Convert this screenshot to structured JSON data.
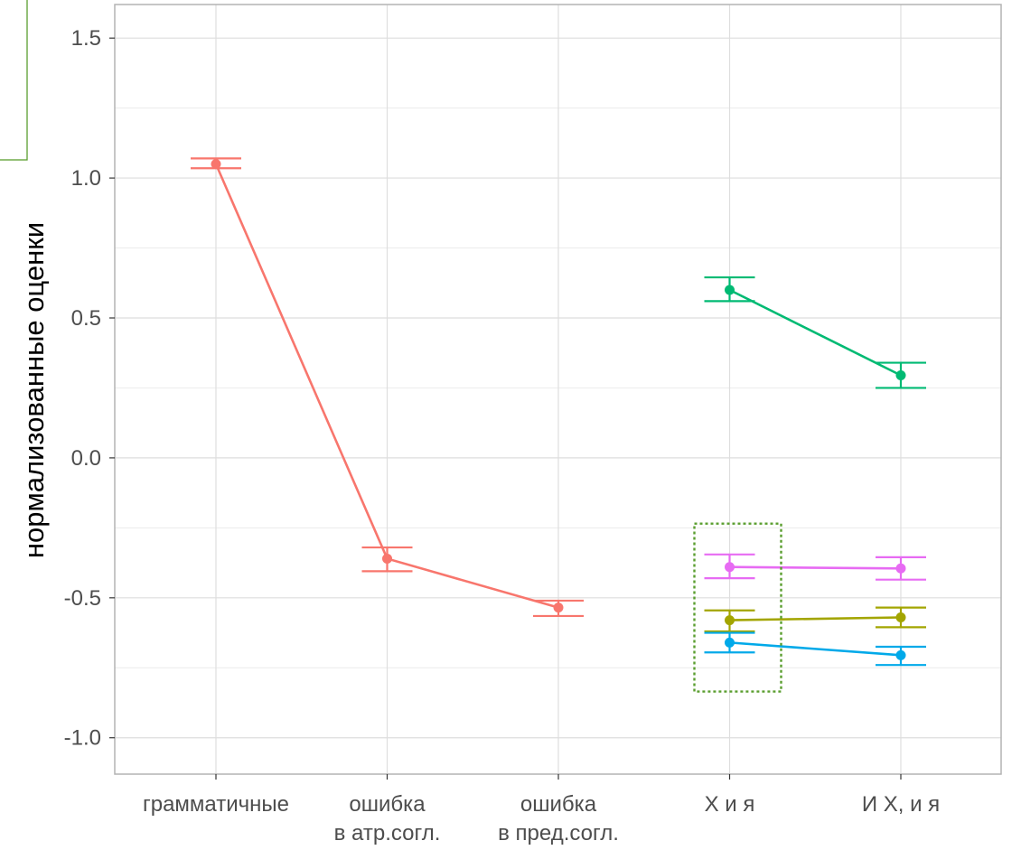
{
  "chart_data": {
    "type": "line",
    "title": "",
    "xlabel": "",
    "ylabel": "нормализованные оценки",
    "ylim": [
      -1.13,
      1.62
    ],
    "y_ticks": [
      "1.5",
      "1.0",
      "0.5",
      "0.0",
      "-0.5",
      "-1.0"
    ],
    "y_tick_values": [
      1.5,
      1.0,
      0.5,
      0.0,
      -0.5,
      -1.0
    ],
    "categories": [
      {
        "line1": "грамматичные",
        "line2": ""
      },
      {
        "line1": "ошибка",
        "line2": "в атр.согл."
      },
      {
        "line1": "ошибка",
        "line2": "в пред.согл."
      },
      {
        "line1": "X и я",
        "line2": ""
      },
      {
        "line1": "И X, и я",
        "line2": ""
      }
    ],
    "grid": true,
    "legend": "none",
    "series": [
      {
        "color": "#F8766D",
        "points": [
          {
            "x": 0,
            "y": 1.05,
            "lo": 1.035,
            "hi": 1.07
          },
          {
            "x": 1,
            "y": -0.36,
            "lo": -0.405,
            "hi": -0.32
          },
          {
            "x": 2,
            "y": -0.535,
            "lo": -0.565,
            "hi": -0.51
          }
        ]
      },
      {
        "color": "#00BA73",
        "points": [
          {
            "x": 3,
            "y": 0.6,
            "lo": 0.56,
            "hi": 0.645
          },
          {
            "x": 4,
            "y": 0.295,
            "lo": 0.25,
            "hi": 0.34
          }
        ]
      },
      {
        "color": "#E76BF3",
        "points": [
          {
            "x": 3,
            "y": -0.39,
            "lo": -0.43,
            "hi": -0.345
          },
          {
            "x": 4,
            "y": -0.395,
            "lo": -0.435,
            "hi": -0.355
          }
        ]
      },
      {
        "color": "#A3A500",
        "points": [
          {
            "x": 3,
            "y": -0.58,
            "lo": -0.62,
            "hi": -0.545
          },
          {
            "x": 4,
            "y": -0.57,
            "lo": -0.605,
            "hi": -0.535
          }
        ]
      },
      {
        "color": "#00A9E9",
        "points": [
          {
            "x": 3,
            "y": -0.66,
            "lo": -0.695,
            "hi": -0.625
          },
          {
            "x": 4,
            "y": -0.705,
            "lo": -0.74,
            "hi": -0.675
          }
        ]
      }
    ],
    "highlight_box": {
      "x_category": 3,
      "y_from": -0.835,
      "y_to": -0.235,
      "color": "#5A9E2F"
    }
  },
  "overlay_box_color": "#5A9E2F"
}
